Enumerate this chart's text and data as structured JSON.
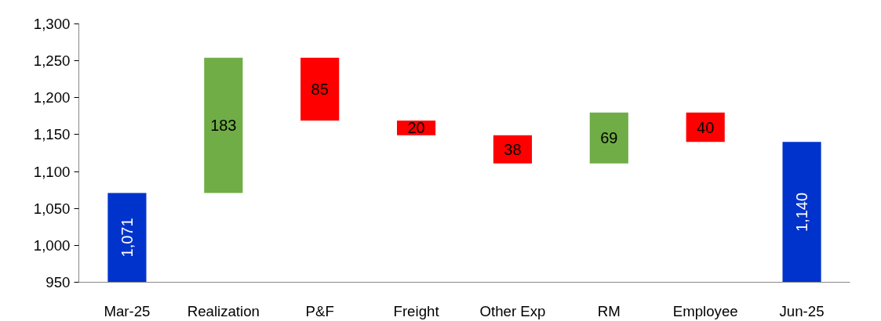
{
  "chart_data": {
    "type": "bar",
    "categories": [
      "Mar-25",
      "Realization",
      "P&F",
      "Freight",
      "Other Exp",
      "RM",
      "Employee",
      "Jun-25"
    ],
    "values": [
      1071,
      183,
      85,
      20,
      38,
      69,
      40,
      1140
    ],
    "base": [
      null,
      1071,
      1169,
      1149,
      1111,
      1111,
      1140,
      null
    ],
    "colors": [
      "#0033cc",
      "#70ad47",
      "#ff0000",
      "#ff0000",
      "#ff0000",
      "#70ad47",
      "#ff0000",
      "#0033cc"
    ],
    "data_labels": true,
    "value_labels": [
      "1,071",
      "183",
      "85",
      "20",
      "38",
      "69",
      "40",
      "1,140"
    ],
    "ylim": [
      950,
      1300
    ],
    "yticks": [
      950,
      {
        "value": 1000,
        "label": "1,000"
      },
      {
        "value": 1050,
        "label": "1,050"
      },
      {
        "value": 1100,
        "label": "1,100"
      },
      {
        "value": 1150,
        "label": "1,150"
      },
      {
        "value": 1200,
        "label": "1,200"
      },
      {
        "value": 1250,
        "label": "1,250"
      },
      {
        "value": 1300,
        "label": "1,300"
      }
    ],
    "grid": false
  }
}
